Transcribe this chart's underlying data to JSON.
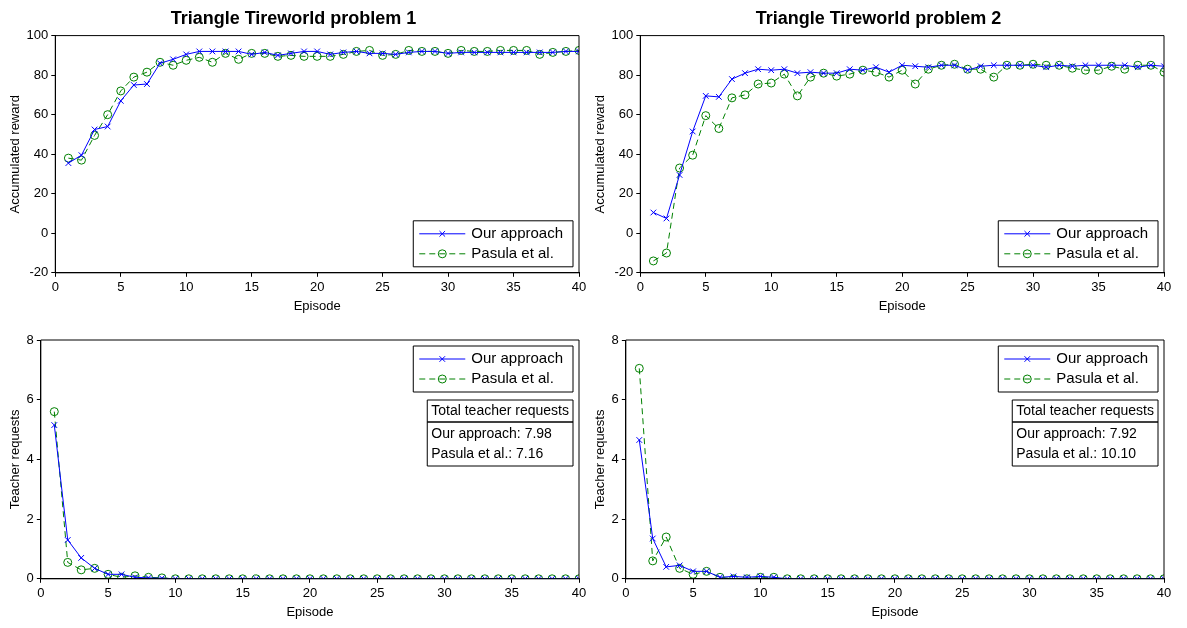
{
  "chart_data": [
    {
      "type": "line",
      "title": "Triangle Tireworld problem 1",
      "xlabel": "Episode",
      "ylabel": "Accumulated reward",
      "xlim": [
        0,
        40
      ],
      "xticks": [
        0,
        5,
        10,
        15,
        20,
        25,
        30,
        35,
        40
      ],
      "ylim": [
        -20,
        100
      ],
      "yticks": [
        -20,
        0,
        20,
        40,
        60,
        80,
        100
      ],
      "legend": "bottom right",
      "x": [
        1,
        2,
        3,
        4,
        5,
        6,
        7,
        8,
        9,
        10,
        11,
        12,
        13,
        14,
        15,
        16,
        17,
        18,
        19,
        20,
        21,
        22,
        23,
        24,
        25,
        26,
        27,
        28,
        29,
        30,
        31,
        32,
        33,
        34,
        35,
        36,
        37,
        38,
        39,
        40
      ],
      "series": [
        {
          "name": "Our approach",
          "color": "#0000ff",
          "marker": "cross",
          "line_style": "solid",
          "values": [
            35.5,
            39.5,
            52.5,
            54,
            67,
            75,
            75.5,
            86,
            88,
            90.5,
            92,
            92,
            92,
            92,
            90.5,
            91.5,
            90,
            91,
            92,
            92,
            90.5,
            91.5,
            92,
            91,
            91,
            90.5,
            91.5,
            92,
            92,
            91,
            91.5,
            91.5,
            91.5,
            91.5,
            91.5,
            91.5,
            91.5,
            91.5,
            92,
            92
          ]
        },
        {
          "name": "Pasula et al.",
          "color": "#008000",
          "marker": "circle",
          "line_style": "dashed",
          "values": [
            38,
            37,
            49.5,
            60,
            72,
            79,
            81.5,
            86.5,
            85,
            87.5,
            89,
            86.5,
            91,
            88,
            91,
            91,
            89.5,
            90,
            89.5,
            89.5,
            89.5,
            90.5,
            92,
            92.5,
            90,
            90.5,
            92.5,
            92,
            92,
            91,
            92.5,
            92,
            92,
            92.5,
            92.5,
            92.5,
            90.5,
            91.5,
            92,
            92.5
          ]
        }
      ]
    },
    {
      "type": "line",
      "title": "Triangle Tireworld problem 2",
      "xlabel": "Episode",
      "ylabel": "Accumulated reward",
      "xlim": [
        0,
        40
      ],
      "xticks": [
        0,
        5,
        10,
        15,
        20,
        25,
        30,
        35,
        40
      ],
      "ylim": [
        -20,
        100
      ],
      "yticks": [
        -20,
        0,
        20,
        40,
        60,
        80,
        100
      ],
      "legend": "bottom right",
      "x": [
        1,
        2,
        3,
        4,
        5,
        6,
        7,
        8,
        9,
        10,
        11,
        12,
        13,
        14,
        15,
        16,
        17,
        18,
        19,
        20,
        21,
        22,
        23,
        24,
        25,
        26,
        27,
        28,
        29,
        30,
        31,
        32,
        33,
        34,
        35,
        36,
        37,
        38,
        39,
        40
      ],
      "series": [
        {
          "name": "Our approach",
          "color": "#0000ff",
          "marker": "cross",
          "line_style": "solid",
          "values": [
            10.5,
            7.5,
            29.5,
            51.5,
            69.5,
            69,
            78,
            81,
            83,
            82.5,
            83,
            81,
            81.5,
            81,
            81,
            83,
            82.5,
            84,
            81.5,
            85,
            84.5,
            84,
            85,
            85,
            82.5,
            84.5,
            85,
            85,
            85,
            85,
            84,
            85,
            84.5,
            85,
            85,
            85,
            85,
            84,
            85,
            84.5
          ]
        },
        {
          "name": "Pasula et al.",
          "color": "#008000",
          "marker": "circle",
          "line_style": "dashed",
          "values": [
            -14,
            -10,
            33,
            39.5,
            59.5,
            53,
            68.5,
            70,
            75.5,
            76,
            80.5,
            69.5,
            79,
            81,
            79.5,
            80.5,
            82.5,
            81.5,
            79,
            82.5,
            75.5,
            83,
            85,
            85.5,
            83,
            83,
            79,
            85,
            85,
            85.5,
            85,
            85,
            83.5,
            82.5,
            82.5,
            84.5,
            83,
            85,
            85,
            81.5
          ]
        }
      ]
    },
    {
      "type": "line",
      "xlabel": "Episode",
      "ylabel": "Teacher requests",
      "xlim": [
        0,
        40
      ],
      "xticks": [
        0,
        5,
        10,
        15,
        20,
        25,
        30,
        35,
        40
      ],
      "ylim": [
        0,
        8
      ],
      "yticks": [
        0,
        2,
        4,
        6,
        8
      ],
      "legend": "top right",
      "annotations": [
        "Total teacher requests",
        "Our approach: 7.98",
        "Pasula et al.: 7.16"
      ],
      "x": [
        1,
        2,
        3,
        4,
        5,
        6,
        7,
        8,
        9,
        10,
        11,
        12,
        13,
        14,
        15,
        16,
        17,
        18,
        19,
        20,
        21,
        22,
        23,
        24,
        25,
        26,
        27,
        28,
        29,
        30,
        31,
        32,
        33,
        34,
        35,
        36,
        37,
        38,
        39,
        40
      ],
      "series": [
        {
          "name": "Our approach",
          "color": "#0000ff",
          "marker": "cross",
          "line_style": "solid",
          "values": [
            5.15,
            1.3,
            0.7,
            0.35,
            0.15,
            0.15,
            0.05,
            0.03,
            0.02,
            0,
            0,
            0,
            0,
            0,
            0,
            0,
            0,
            0,
            0,
            0,
            0,
            0,
            0,
            0,
            0,
            0,
            0,
            0,
            0,
            0,
            0,
            0,
            0,
            0,
            0,
            0,
            0,
            0,
            0,
            0
          ]
        },
        {
          "name": "Pasula et al.",
          "color": "#008000",
          "marker": "circle",
          "line_style": "dashed",
          "values": [
            5.6,
            0.55,
            0.3,
            0.35,
            0.15,
            0.05,
            0.1,
            0.05,
            0.03,
            0,
            0,
            0,
            0,
            0,
            0,
            0,
            0,
            0,
            0,
            0,
            0,
            0,
            0,
            0,
            0,
            0,
            0,
            0,
            0,
            0,
            0,
            0,
            0,
            0,
            0,
            0,
            0,
            0,
            0,
            0
          ]
        }
      ]
    },
    {
      "type": "line",
      "xlabel": "Episode",
      "ylabel": "Teacher requests",
      "xlim": [
        0,
        40
      ],
      "xticks": [
        0,
        5,
        10,
        15,
        20,
        25,
        30,
        35,
        40
      ],
      "ylim": [
        0,
        8
      ],
      "yticks": [
        0,
        2,
        4,
        6,
        8
      ],
      "legend": "top right",
      "annotations": [
        "Total teacher requests",
        "Our approach: 7.92",
        "Pasula et al.: 10.10"
      ],
      "x": [
        1,
        2,
        3,
        4,
        5,
        6,
        7,
        8,
        9,
        10,
        11,
        12,
        13,
        14,
        15,
        16,
        17,
        18,
        19,
        20,
        21,
        22,
        23,
        24,
        25,
        26,
        27,
        28,
        29,
        30,
        31,
        32,
        33,
        34,
        35,
        36,
        37,
        38,
        39,
        40
      ],
      "series": [
        {
          "name": "Our approach",
          "color": "#0000ff",
          "marker": "cross",
          "line_style": "solid",
          "values": [
            4.65,
            1.35,
            0.4,
            0.45,
            0.25,
            0.25,
            0.05,
            0.08,
            0.05,
            0.08,
            0.05,
            0,
            0,
            0,
            0,
            0,
            0,
            0,
            0,
            0,
            0,
            0,
            0,
            0,
            0,
            0,
            0,
            0,
            0,
            0,
            0,
            0,
            0,
            0,
            0,
            0,
            0,
            0,
            0,
            0
          ]
        },
        {
          "name": "Pasula et al.",
          "color": "#008000",
          "marker": "circle",
          "line_style": "dashed",
          "values": [
            7.05,
            0.6,
            1.4,
            0.35,
            0.15,
            0.25,
            0.05,
            0,
            0,
            0.05,
            0.05,
            0,
            0,
            0,
            0,
            0,
            0,
            0,
            0,
            0,
            0,
            0,
            0,
            0,
            0,
            0,
            0,
            0,
            0,
            0,
            0,
            0,
            0,
            0,
            0,
            0,
            0,
            0,
            0,
            0
          ]
        }
      ]
    }
  ]
}
